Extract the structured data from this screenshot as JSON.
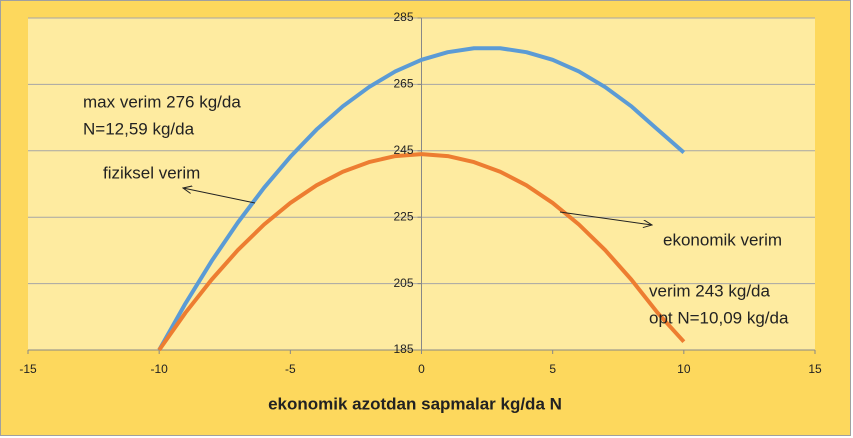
{
  "chart_data": {
    "type": "line",
    "x_label": "ekonomik azotdan sapmalar kg/da  N",
    "annotations": [
      "max verim 276 kg/da",
      "N=12,59 kg/da",
      "verim 243 kg/da",
      "opt N=10,09 kg/da"
    ],
    "x": [
      -10,
      -9,
      -8,
      -7,
      -6,
      -5,
      -4,
      -3,
      -2,
      -1,
      0,
      1,
      2,
      3,
      4,
      5,
      6,
      7,
      8,
      9,
      10
    ],
    "series": [
      {
        "name": "fiziksel verim",
        "color": "#5b9bd5",
        "values": [
          185,
          199,
          211.8,
          223.4,
          233.9,
          243.2,
          251.4,
          258.4,
          264.2,
          268.9,
          272.4,
          274.7,
          275.9,
          275.9,
          274.7,
          272.4,
          268.9,
          264.2,
          258.4,
          251.4,
          244.5
        ]
      },
      {
        "name": "ekonomik verim",
        "color": "#ed7d31",
        "values": [
          185,
          196.2,
          206.2,
          215.1,
          222.8,
          229.3,
          234.6,
          238.7,
          241.6,
          243.4,
          244,
          243.4,
          241.6,
          238.7,
          234.6,
          229.3,
          222.8,
          215.1,
          206.2,
          196.2,
          187.5
        ]
      }
    ],
    "xlim": [
      -15,
      15
    ],
    "xticks": [
      -15,
      -10,
      -5,
      0,
      5,
      10,
      15
    ],
    "ylim": [
      185,
      285
    ],
    "yticks": [
      185,
      205,
      225,
      245,
      265,
      285
    ],
    "grid": true
  }
}
